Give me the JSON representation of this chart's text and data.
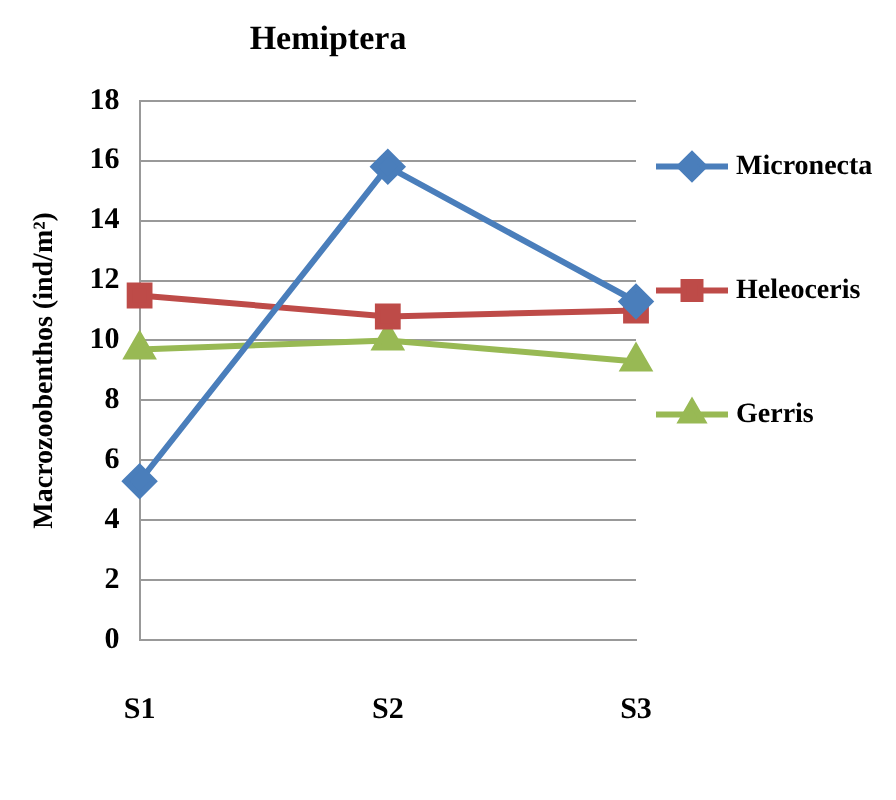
{
  "chart_data": {
    "type": "line",
    "title": "Hemiptera",
    "ylabel": "Macrozoobenthos (ind/m²)",
    "categories": [
      "S1",
      "S2",
      "S3"
    ],
    "series": [
      {
        "name": "Micronecta",
        "color": "#4a7ebb",
        "values": [
          5.3,
          15.8,
          11.3
        ],
        "marker": "diamond"
      },
      {
        "name": "Heleoceris",
        "color": "#be4b48",
        "values": [
          11.5,
          10.8,
          11.0
        ],
        "marker": "square"
      },
      {
        "name": "Gerris",
        "color": "#98b954",
        "values": [
          9.7,
          10.0,
          9.3
        ],
        "marker": "triangle"
      }
    ],
    "ylim": [
      0,
      18
    ],
    "yticks": [
      0,
      2,
      4,
      6,
      8,
      10,
      12,
      14,
      16,
      18
    ],
    "grid": "y",
    "legend": "right"
  }
}
